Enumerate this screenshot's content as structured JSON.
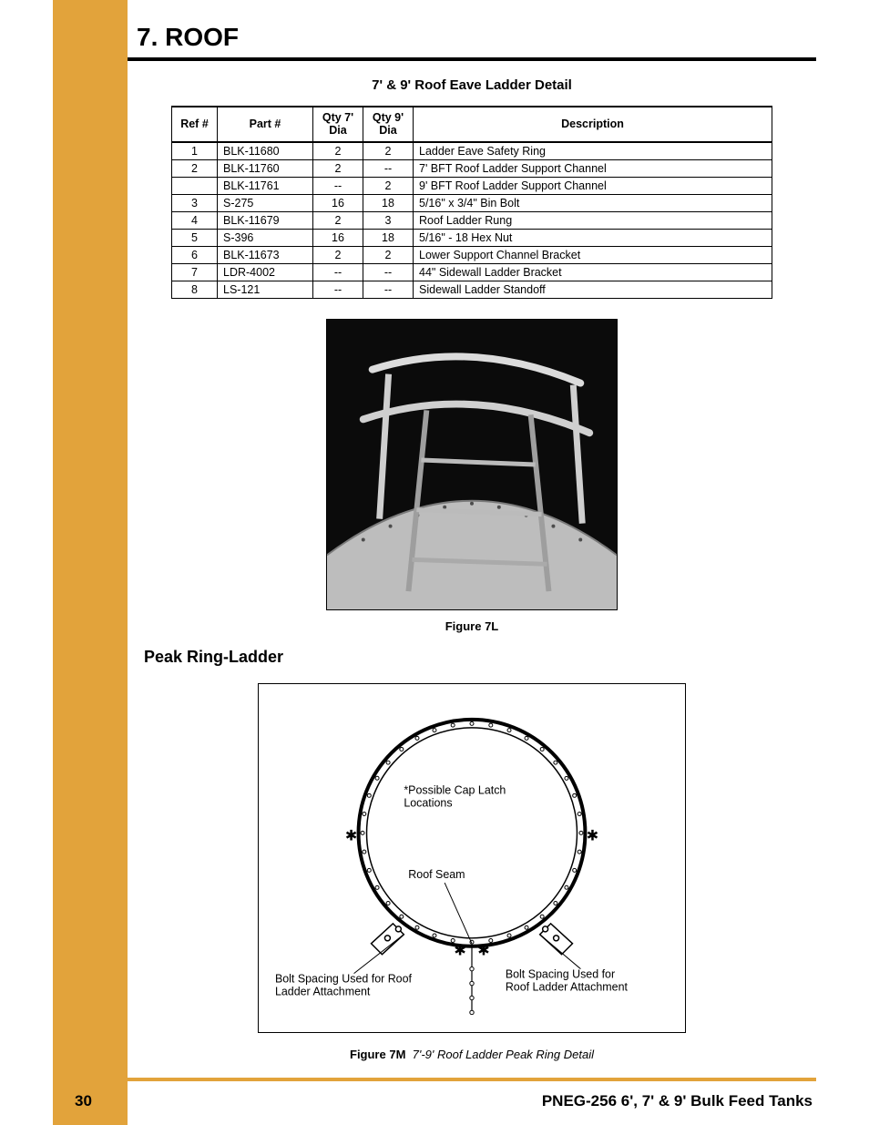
{
  "chapter_title": "7. ROOF",
  "table_title": "7' & 9' Roof Eave Ladder Detail",
  "table": {
    "columns": [
      "Ref #",
      "Part #",
      "Qty 7' Dia",
      "Qty 9' Dia",
      "Description"
    ],
    "rows": [
      [
        "1",
        "BLK-11680",
        "2",
        "2",
        "Ladder Eave Safety Ring"
      ],
      [
        "2",
        "BLK-11760",
        "2",
        "--",
        "7' BFT Roof Ladder Support Channel"
      ],
      [
        "",
        "BLK-11761",
        "--",
        "2",
        "9' BFT Roof Ladder Support Channel"
      ],
      [
        "3",
        "S-275",
        "16",
        "18",
        "5/16\" x 3/4\" Bin Bolt"
      ],
      [
        "4",
        "BLK-11679",
        "2",
        "3",
        "Roof Ladder Rung"
      ],
      [
        "5",
        "S-396",
        "16",
        "18",
        "5/16\" - 18 Hex Nut"
      ],
      [
        "6",
        "BLK-11673",
        "2",
        "2",
        "Lower Support Channel Bracket"
      ],
      [
        "7",
        "LDR-4002",
        "--",
        "--",
        "44\" Sidewall Ladder Bracket"
      ],
      [
        "8",
        "LS-121",
        "--",
        "--",
        "Sidewall Ladder Standoff"
      ]
    ]
  },
  "figure7L": {
    "caption": "Figure 7L",
    "photo_bg": "#000000",
    "metal_color": "#c9c9c9",
    "highlight": "#e8e8e8",
    "shadow": "#4a4a4a"
  },
  "section_heading": "Peak Ring-Ladder",
  "figure7M": {
    "caption_bold": "Figure 7M",
    "caption_ital": "7'-9' Roof Ladder Peak Ring Detail",
    "label_cap_latch": "*Possible Cap Latch Locations",
    "label_roof_seam": "Roof Seam",
    "label_bolt_left": "Bolt Spacing Used for Roof Ladder Attachment",
    "label_bolt_right": "Bolt Spacing Used for Roof Ladder Attachment",
    "ring_stroke": "#000000",
    "ring_fill": "#ffffff"
  },
  "footer": {
    "page_num": "30",
    "doc_id": "PNEG-256  6', 7' & 9' Bulk Feed Tanks",
    "rule_color": "#e2a33b"
  },
  "colors": {
    "sidebar": "#e2a33b",
    "text": "#000000",
    "border": "#000000"
  }
}
